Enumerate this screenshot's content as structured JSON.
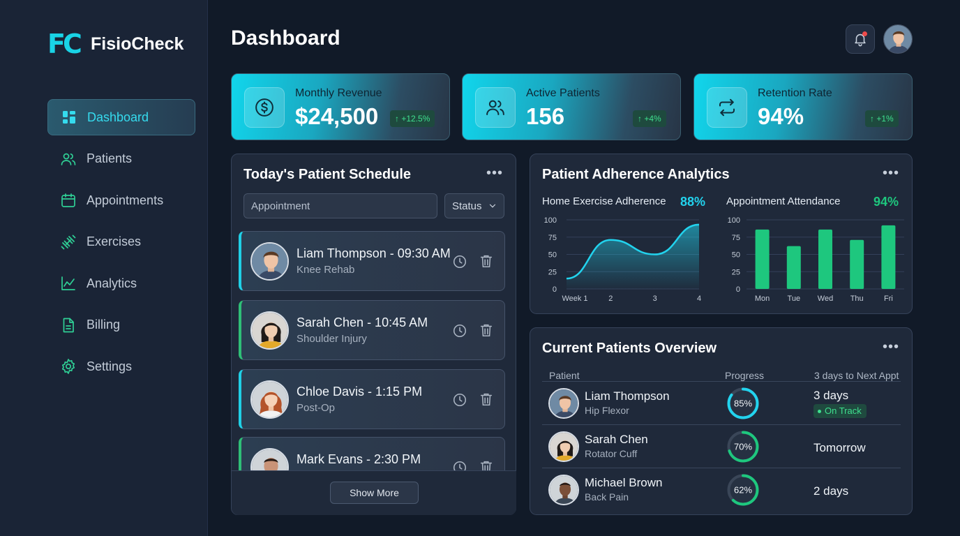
{
  "brand": {
    "mark": "FC",
    "name": "FisioCheck"
  },
  "nav": [
    {
      "label": "Dashboard",
      "icon": "dashboard-icon",
      "active": true
    },
    {
      "label": "Patients",
      "icon": "users-icon"
    },
    {
      "label": "Appointments",
      "icon": "calendar-icon"
    },
    {
      "label": "Exercises",
      "icon": "dumbbell-icon"
    },
    {
      "label": "Analytics",
      "icon": "line-chart-icon"
    },
    {
      "label": "Billing",
      "icon": "document-icon"
    },
    {
      "label": "Settings",
      "icon": "gear-icon"
    }
  ],
  "header": {
    "title": "Dashboard"
  },
  "stats": [
    {
      "label": "Monthly Revenue",
      "value": "$24,500",
      "change": "↑ +12.5%",
      "icon": "dollar-icon"
    },
    {
      "label": "Active Patients",
      "value": "156",
      "change": "↑ +4%",
      "icon": "users-icon"
    },
    {
      "label": "Retention Rate",
      "value": "94%",
      "change": "↑ +1%",
      "icon": "refresh-icon"
    }
  ],
  "schedule": {
    "title": "Today's Patient Schedule",
    "search_placeholder": "Appointment",
    "status_label": "Status",
    "items": [
      {
        "name": "Liam Thompson - 09:30 AM",
        "condition": "Knee Rehab"
      },
      {
        "name": "Sarah Chen - 10:45 AM",
        "condition": "Shoulder Injury"
      },
      {
        "name": "Chloe Davis - 1:15 PM",
        "condition": "Post-Op"
      },
      {
        "name": "Mark Evans - 2:30 PM",
        "condition": ""
      }
    ],
    "show_more": "Show More"
  },
  "analytics": {
    "title": "Patient Adherence Analytics",
    "exercise": {
      "title": "Home Exercise Adherence",
      "value": "88%"
    },
    "attendance": {
      "title": "Appointment Attendance",
      "value": "94%"
    }
  },
  "chart_data": [
    {
      "type": "area",
      "title": "Home Exercise Adherence",
      "x": [
        "Week 1",
        "2",
        "3",
        "4"
      ],
      "values": [
        15,
        71,
        50,
        93
      ],
      "ylim": [
        0,
        100
      ],
      "yticks": [
        0,
        25,
        50,
        75,
        100
      ],
      "color": "#22d3ee"
    },
    {
      "type": "bar",
      "title": "Appointment Attendance",
      "categories": [
        "Mon",
        "Tue",
        "Wed",
        "Thu",
        "Fri"
      ],
      "values": [
        86,
        62,
        86,
        71,
        92
      ],
      "ylim": [
        0,
        100
      ],
      "yticks": [
        0,
        25,
        50,
        75,
        100
      ],
      "color": "#1ec77e"
    }
  ],
  "overview": {
    "title": "Current Patients Overview",
    "columns": [
      "Patient",
      "Progress",
      "3 days to Next Appt"
    ],
    "rows": [
      {
        "name": "Liam Thompson",
        "condition": "Hip Flexor",
        "progress": 85,
        "progress_label": "85%",
        "next": "3 days",
        "badge": "On Track",
        "ring_color": "#22d3ee"
      },
      {
        "name": "Sarah Chen",
        "condition": "Rotator Cuff",
        "progress": 70,
        "progress_label": "70%",
        "next": "Tomorrow",
        "badge": "",
        "ring_color": "#1ec77e"
      },
      {
        "name": "Michael Brown",
        "condition": "Back Pain",
        "progress": 62,
        "progress_label": "62%",
        "next": "2 days",
        "badge": "",
        "ring_color": "#1ec77e"
      }
    ]
  },
  "colors": {
    "accent": "#22d3ee",
    "green": "#1ec77e",
    "bg": "#111a28",
    "panel": "#1f293a"
  }
}
